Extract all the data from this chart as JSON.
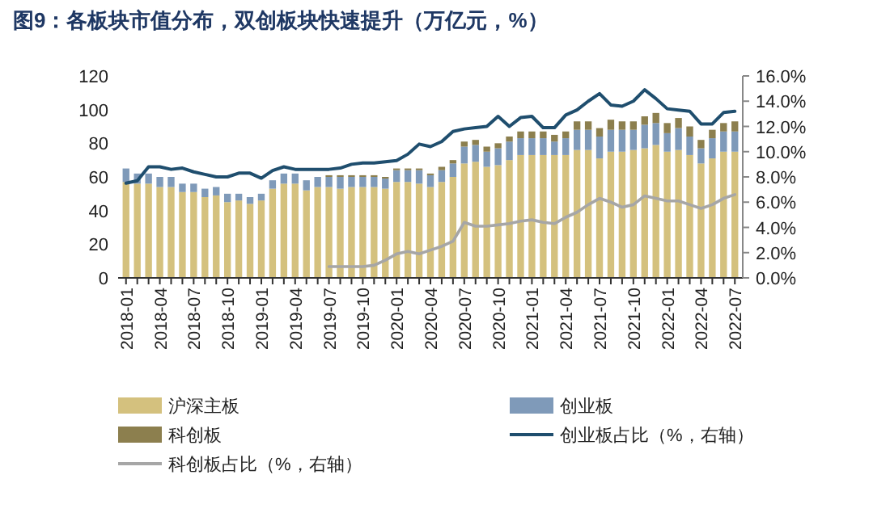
{
  "chart_data": {
    "type": "bar",
    "title": "图9：各板块市值分布，双创板块快速提升（万亿元，%）",
    "categories": [
      "2018-01",
      null,
      null,
      "2018-04",
      null,
      null,
      "2018-07",
      null,
      null,
      "2018-10",
      null,
      null,
      "2019-01",
      null,
      null,
      "2019-04",
      null,
      null,
      "2019-07",
      null,
      null,
      "2019-10",
      null,
      null,
      "2020-01",
      null,
      null,
      "2020-04",
      null,
      null,
      "2020-07",
      null,
      null,
      "2020-10",
      null,
      null,
      "2021-01",
      null,
      null,
      "2021-04",
      null,
      null,
      "2021-07",
      null,
      null,
      "2021-10",
      null,
      null,
      "2022-01",
      null,
      null,
      "2022-04",
      null,
      null,
      "2022-07"
    ],
    "stacked": true,
    "ylim": [
      0,
      120
    ],
    "yticks": [
      0,
      20,
      40,
      60,
      80,
      100,
      120
    ],
    "y2lim": [
      0,
      16
    ],
    "y2ticks": [
      {
        "value": 0,
        "label": "0.0%"
      },
      {
        "value": 2,
        "label": "2.0%"
      },
      {
        "value": 4,
        "label": "4.0%"
      },
      {
        "value": 6,
        "label": "6.0%"
      },
      {
        "value": 8,
        "label": "8.0%"
      },
      {
        "value": 10,
        "label": "10.0%"
      },
      {
        "value": 12,
        "label": "12.0%"
      },
      {
        "value": 14,
        "label": "14.0%"
      },
      {
        "value": 16,
        "label": "16.0%"
      }
    ],
    "grid": false,
    "legend": "bottom",
    "series": [
      {
        "name": "沪深主板",
        "color": "#d4c17e",
        "values": [
          57,
          56,
          56,
          54,
          54,
          51,
          51,
          48,
          49,
          45,
          46,
          44,
          46,
          53,
          56,
          56,
          52,
          54,
          54,
          53,
          54,
          54,
          54,
          53,
          57,
          57,
          56,
          54,
          57,
          60,
          68,
          69,
          66,
          67,
          70,
          73,
          73,
          73,
          73,
          73,
          76,
          76,
          71,
          75,
          75,
          76,
          77,
          79,
          75,
          76,
          73,
          68,
          71,
          75,
          75
        ]
      },
      {
        "name": "创业板",
        "color": "#7f9ab9",
        "values": [
          8,
          6,
          6,
          6,
          6,
          5,
          5,
          5,
          5,
          5,
          4,
          4,
          4,
          5,
          6,
          6,
          6,
          6,
          6,
          7,
          6,
          6,
          6,
          6,
          7,
          7,
          8,
          7,
          7,
          8,
          10,
          10,
          9,
          10,
          11,
          10,
          10,
          10,
          8,
          10,
          12,
          12,
          13,
          13,
          13,
          12,
          14,
          13,
          11,
          13,
          11,
          9,
          12,
          12,
          12
        ]
      },
      {
        "name": "科创板",
        "color": "#8c7f4e",
        "values": [
          null,
          null,
          null,
          null,
          null,
          null,
          null,
          null,
          null,
          null,
          null,
          null,
          null,
          null,
          null,
          null,
          null,
          null,
          1,
          1,
          1,
          1,
          1,
          1,
          1,
          1,
          1,
          1,
          2,
          2,
          3,
          3,
          3,
          3,
          3,
          4,
          4,
          4,
          4,
          4,
          5,
          5,
          5,
          6,
          5,
          5,
          5,
          6,
          6,
          6,
          6,
          5,
          5,
          5,
          6
        ]
      },
      {
        "name": "创业板占比（%，右轴）",
        "type": "line",
        "axis": "y2",
        "color": "#1f4e6e",
        "values": [
          7.5,
          7.7,
          8.8,
          8.8,
          8.6,
          8.7,
          8.4,
          8.2,
          8,
          8,
          8.3,
          8.3,
          7.9,
          8.5,
          8.8,
          8.6,
          8.6,
          8.6,
          8.6,
          8.7,
          9,
          9.1,
          9.1,
          9.2,
          9.3,
          9.8,
          10.6,
          10.4,
          10.8,
          11.6,
          11.8,
          11.9,
          12,
          12.8,
          12,
          12.7,
          12.8,
          11.9,
          11.9,
          12.9,
          13.3,
          14,
          14.6,
          13.7,
          13.6,
          14,
          14.9,
          14.2,
          13.4,
          13.3,
          13.2,
          12.2,
          12.2,
          13.1,
          13.2
        ]
      },
      {
        "name": "科创板占比（%，右轴）",
        "type": "line",
        "axis": "y2",
        "color": "#a6a6a6",
        "values": [
          null,
          null,
          null,
          null,
          null,
          null,
          null,
          null,
          null,
          null,
          null,
          null,
          null,
          null,
          null,
          null,
          null,
          null,
          0.9,
          0.9,
          0.9,
          0.9,
          1,
          1.4,
          1.9,
          2.1,
          1.9,
          2.2,
          2.5,
          2.9,
          4.4,
          4.1,
          4.1,
          4.2,
          4.3,
          4.5,
          4.6,
          4.4,
          4.3,
          4.8,
          5.2,
          5.8,
          6.3,
          6,
          5.6,
          5.8,
          6.5,
          6.3,
          6.1,
          6.1,
          5.8,
          5.5,
          5.8,
          6.3,
          6.6
        ]
      }
    ]
  }
}
